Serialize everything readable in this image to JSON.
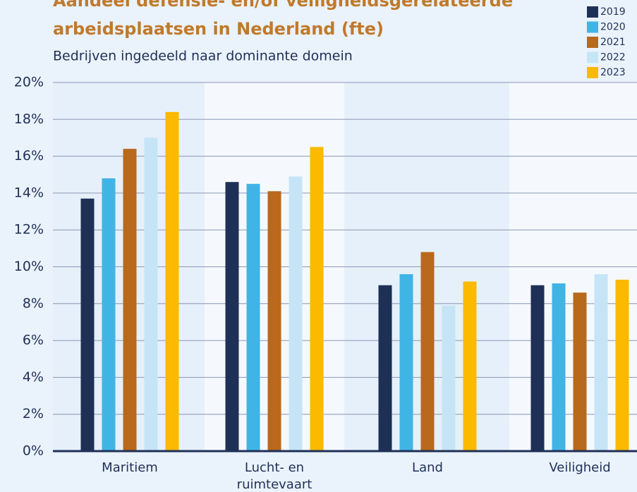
{
  "chart_data": {
    "type": "bar",
    "title_lines": [
      "Aandeel defensie- en/of veiligheidsgerelateerde",
      "arbeidsplaatsen in Nederland (fte)"
    ],
    "subtitle": "Bedrijven ingedeeld naar dominante domein",
    "categories": [
      "Maritiem",
      "Lucht- en ruimtevaart",
      "Land",
      "Veiligheid"
    ],
    "series": [
      {
        "name": "2019",
        "color": "#1f3057",
        "values": [
          13.7,
          14.6,
          9.0,
          9.0
        ]
      },
      {
        "name": "2020",
        "color": "#41b4e6",
        "values": [
          14.8,
          14.5,
          9.6,
          9.1
        ]
      },
      {
        "name": "2021",
        "color": "#b8691b",
        "values": [
          16.4,
          14.1,
          10.8,
          8.6
        ]
      },
      {
        "name": "2022",
        "color": "#c5e5f7",
        "values": [
          17.0,
          14.9,
          7.9,
          9.6
        ]
      },
      {
        "name": "2023",
        "color": "#fbb900",
        "values": [
          18.4,
          16.5,
          9.2,
          9.3
        ]
      }
    ],
    "ylim": [
      0,
      20
    ],
    "yticks": [
      {
        "value": 0,
        "label": "0%"
      },
      {
        "value": 2,
        "label": "2%"
      },
      {
        "value": 4,
        "label": "4%"
      },
      {
        "value": 6,
        "label": "6%"
      },
      {
        "value": 8,
        "label": "8%"
      },
      {
        "value": 10,
        "label": "10%"
      },
      {
        "value": 12,
        "label": "12%"
      },
      {
        "value": 14,
        "label": "14%"
      },
      {
        "value": 16,
        "label": "16%"
      },
      {
        "value": 18,
        "label": "18%"
      },
      {
        "value": 20,
        "label": "20%"
      }
    ],
    "grid": true
  }
}
